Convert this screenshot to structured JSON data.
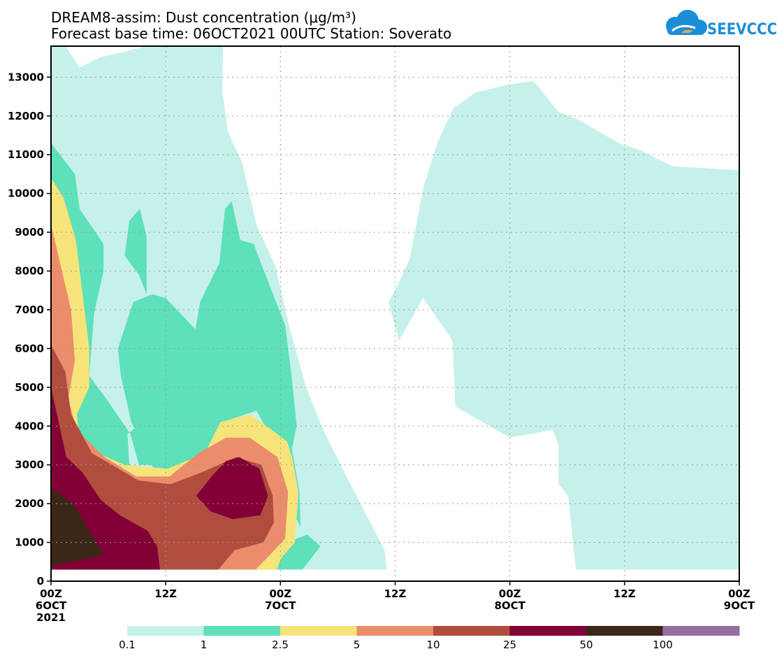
{
  "chart_data": {
    "type": "area",
    "title": "DREAM8-assim: Dust concentration (μg/m³)",
    "subtitle": "Forecast base time: 06OCT2021 00UTC   Station: Soverato",
    "xlabel": "",
    "ylabel": "",
    "units": "μg/m³",
    "x_unit": "hours since 06OCT2021 00UTC",
    "xlim": [
      0,
      72
    ],
    "ylim": [
      0,
      13800
    ],
    "grid": true,
    "x_ticks": [
      {
        "value": 0,
        "label": [
          "00Z",
          "6OCT",
          "2021"
        ]
      },
      {
        "value": 12,
        "label": [
          "12Z"
        ]
      },
      {
        "value": 24,
        "label": [
          "00Z",
          "7OCT"
        ]
      },
      {
        "value": 36,
        "label": [
          "12Z"
        ]
      },
      {
        "value": 48,
        "label": [
          "00Z",
          "8OCT"
        ]
      },
      {
        "value": 60,
        "label": [
          "12Z"
        ]
      },
      {
        "value": 72,
        "label": [
          "00Z",
          "9OCT"
        ]
      }
    ],
    "y_ticks": [
      0,
      1000,
      2000,
      3000,
      4000,
      5000,
      6000,
      7000,
      8000,
      9000,
      10000,
      11000,
      12000,
      13000
    ],
    "colorbar": {
      "colors": [
        "#c6f1eb",
        "#5ee0b9",
        "#f6e47a",
        "#eb8d6b",
        "#b04d3f",
        "#820035",
        "#3a2717",
        "#946fa0"
      ],
      "labels": [
        "0.1",
        "1",
        "2.5",
        "5",
        "10",
        "25",
        "50",
        "100"
      ]
    },
    "contours": [
      {
        "level": "0.1",
        "color": "#c6f1eb",
        "polygons": [
          [
            [
              0,
              300
            ],
            [
              0,
              13800
            ],
            [
              1.5,
              13800
            ],
            [
              3,
              13250
            ],
            [
              5,
              13500
            ],
            [
              10,
              13800
            ],
            [
              18,
              13800
            ],
            [
              17.9,
              12700
            ],
            [
              18.5,
              11600
            ],
            [
              20,
              10800
            ],
            [
              21.5,
              9200
            ],
            [
              23.5,
              8100
            ],
            [
              25,
              6500
            ],
            [
              26.7,
              5000
            ],
            [
              28.3,
              4000
            ],
            [
              30.5,
              2900
            ],
            [
              32.8,
              1800
            ],
            [
              34.9,
              800
            ],
            [
              35.1,
              300
            ]
          ],
          [
            [
              35.3,
              7200
            ],
            [
              36,
              7500
            ],
            [
              37.5,
              8300
            ],
            [
              39,
              10200
            ],
            [
              40.4,
              11300
            ],
            [
              42.1,
              12200
            ],
            [
              44.4,
              12600
            ],
            [
              47.6,
              12800
            ],
            [
              50.5,
              12900
            ],
            [
              53.1,
              12100
            ],
            [
              55.2,
              11900
            ],
            [
              59.4,
              11300
            ],
            [
              61.8,
              11100
            ],
            [
              65,
              10700
            ],
            [
              72,
              10600
            ],
            [
              72,
              300
            ],
            [
              54.9,
              300
            ],
            [
              54.1,
              2200
            ],
            [
              53.1,
              2500
            ],
            [
              53.1,
              3500
            ],
            [
              52.5,
              3900
            ],
            [
              48,
              3700
            ],
            [
              42.3,
              4500
            ],
            [
              42,
              6200
            ],
            [
              38.9,
              7300
            ],
            [
              36.4,
              6200
            ]
          ]
        ]
      },
      {
        "level": "1",
        "color": "#5ee0b9",
        "polygons": [
          [
            [
              0,
              300
            ],
            [
              0,
              11300
            ],
            [
              2.5,
              10500
            ],
            [
              3,
              9600
            ],
            [
              5.5,
              8700
            ],
            [
              5.5,
              8000
            ],
            [
              4.5,
              6900
            ],
            [
              4,
              5300
            ],
            [
              5.8,
              4700
            ],
            [
              8.3,
              3800
            ],
            [
              9.2,
              3000
            ],
            [
              10.8,
              3000
            ],
            [
              12,
              3100
            ],
            [
              15,
              3700
            ],
            [
              15.3,
              4300
            ],
            [
              16.1,
              5200
            ],
            [
              15.2,
              5200
            ],
            [
              12.6,
              5500
            ],
            [
              10.2,
              4600
            ],
            [
              9.1,
              4000
            ],
            [
              8,
              3800
            ],
            [
              8.3,
              2600
            ],
            [
              11.9,
              2000
            ],
            [
              16.5,
              2300
            ],
            [
              21,
              1500
            ],
            [
              22.5,
              1000
            ],
            [
              24.6,
              1000
            ],
            [
              26.8,
              1200
            ],
            [
              28.2,
              900
            ],
            [
              26.3,
              300
            ]
          ],
          [
            [
              7.7,
              8400
            ],
            [
              8.2,
              9300
            ],
            [
              9.3,
              9600
            ],
            [
              10,
              8900
            ],
            [
              10,
              7400
            ],
            [
              9.2,
              7900
            ]
          ],
          [
            [
              7,
              6000
            ],
            [
              8.6,
              7200
            ],
            [
              10.6,
              7400
            ],
            [
              12,
              7300
            ],
            [
              15.1,
              6500
            ],
            [
              15.6,
              7200
            ],
            [
              17.6,
              8200
            ],
            [
              18.2,
              9600
            ],
            [
              18.9,
              9800
            ],
            [
              19.8,
              8800
            ],
            [
              21.2,
              8700
            ],
            [
              22.6,
              7800
            ],
            [
              24.5,
              6600
            ],
            [
              25.2,
              5200
            ],
            [
              25.7,
              4000
            ],
            [
              25.2,
              3400
            ],
            [
              26,
              2300
            ],
            [
              26.1,
              1400
            ],
            [
              24.2,
              2300
            ],
            [
              23.5,
              3500
            ],
            [
              21.5,
              4400
            ],
            [
              17.9,
              4100
            ],
            [
              16.3,
              3200
            ],
            [
              13.6,
              2900
            ],
            [
              11.1,
              2700
            ],
            [
              8.4,
              4100
            ],
            [
              7.3,
              5300
            ]
          ]
        ]
      },
      {
        "level": "2.5",
        "color": "#f6e47a",
        "polygons": [
          [
            [
              0,
              300
            ],
            [
              0,
              10400
            ],
            [
              1.3,
              9900
            ],
            [
              2.6,
              8800
            ],
            [
              4,
              6000
            ],
            [
              4,
              5000
            ],
            [
              2.7,
              4300
            ],
            [
              3,
              3600
            ],
            [
              4.9,
              3300
            ],
            [
              7.7,
              3000
            ],
            [
              12.2,
              2900
            ],
            [
              16.1,
              3300
            ],
            [
              17.7,
              4100
            ],
            [
              20.8,
              4300
            ],
            [
              23.1,
              3900
            ],
            [
              24.7,
              3600
            ],
            [
              25.2,
              3200
            ],
            [
              25.9,
              2300
            ],
            [
              25.5,
              1000
            ],
            [
              24.1,
              600
            ],
            [
              23.6,
              300
            ]
          ]
        ]
      },
      {
        "level": "5",
        "color": "#eb8d6b",
        "polygons": [
          [
            [
              0,
              300
            ],
            [
              0,
              9200
            ],
            [
              2.1,
              7000
            ],
            [
              2.5,
              5700
            ],
            [
              1.8,
              4700
            ],
            [
              2.7,
              3900
            ],
            [
              5.6,
              3200
            ],
            [
              8.9,
              2700
            ],
            [
              12.4,
              2700
            ],
            [
              15.4,
              3300
            ],
            [
              18.3,
              3700
            ],
            [
              20.8,
              3700
            ],
            [
              23.7,
              3200
            ],
            [
              24.8,
              2300
            ],
            [
              24.5,
              1100
            ],
            [
              22.6,
              600
            ],
            [
              21.4,
              300
            ]
          ]
        ]
      },
      {
        "level": "10",
        "color": "#b04d3f",
        "polygons": [
          [
            [
              0,
              300
            ],
            [
              0,
              6100
            ],
            [
              1.5,
              5400
            ],
            [
              2.1,
              4300
            ],
            [
              4.3,
              3300
            ],
            [
              6.4,
              3000
            ],
            [
              9.1,
              2600
            ],
            [
              12.5,
              2500
            ],
            [
              15.7,
              2800
            ],
            [
              19.4,
              3200
            ],
            [
              22,
              3000
            ],
            [
              23.2,
              2200
            ],
            [
              23.3,
              1500
            ],
            [
              22.2,
              1000
            ],
            [
              19.2,
              800
            ],
            [
              17.5,
              300
            ]
          ]
        ]
      },
      {
        "level": "25",
        "color": "#820035",
        "polygons": [
          [
            [
              0,
              300
            ],
            [
              0,
              5000
            ],
            [
              1.6,
              3200
            ],
            [
              3.3,
              2800
            ],
            [
              5.2,
              2100
            ],
            [
              7.2,
              1700
            ],
            [
              10.1,
              1300
            ],
            [
              11.1,
              900
            ],
            [
              11.4,
              300
            ]
          ],
          [
            [
              15.2,
              2200
            ],
            [
              16.8,
              2700
            ],
            [
              18.3,
              3100
            ],
            [
              19.7,
              3200
            ],
            [
              21.8,
              2900
            ],
            [
              22.7,
              2200
            ],
            [
              21.9,
              1700
            ],
            [
              19,
              1600
            ],
            [
              16.7,
              1800
            ]
          ]
        ]
      },
      {
        "level": "50",
        "color": "#3a2717",
        "polygons": [
          [
            [
              0,
              400
            ],
            [
              0,
              2400
            ],
            [
              2.3,
              2000
            ],
            [
              5.5,
              700
            ],
            [
              4.2,
              600
            ]
          ]
        ]
      },
      {
        "level": "0.1",
        "color": "#c6f1eb",
        "polygons": [
          [
            [
              60.1,
              5800
            ],
            [
              59.9,
              6000
            ],
            [
              60.1,
              6200
            ],
            [
              60.3,
              6000
            ]
          ]
        ]
      }
    ]
  },
  "logo": {
    "text": "SEEVCCC",
    "colors": {
      "cloud": "#1a8fd8",
      "arrow": "#f2a73b"
    }
  }
}
